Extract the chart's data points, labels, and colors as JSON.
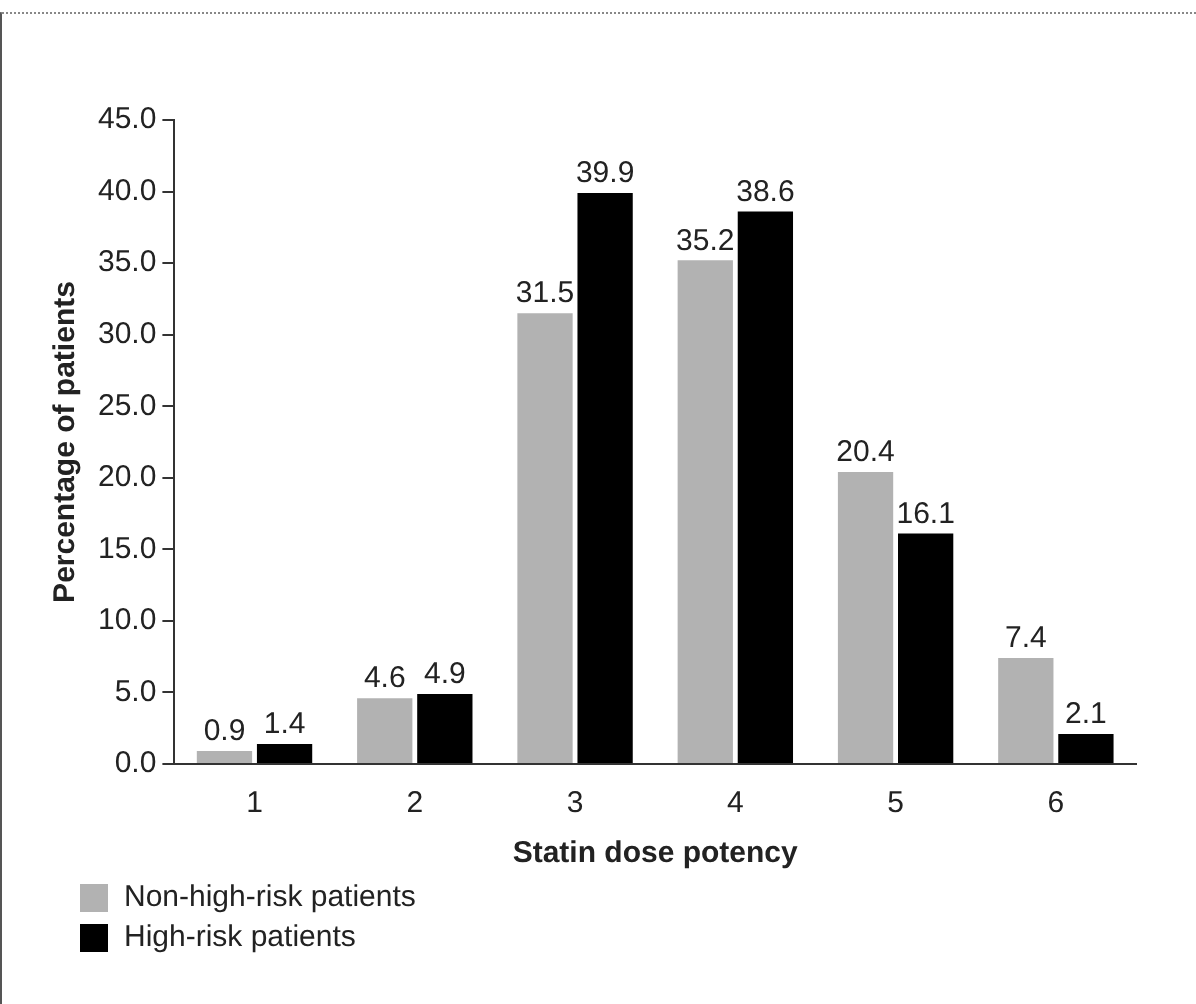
{
  "chart_data": {
    "type": "bar",
    "xlabel": "Statin dose potency",
    "ylabel": "Percentage of patients",
    "categories": [
      "1",
      "2",
      "3",
      "4",
      "5",
      "6"
    ],
    "series": [
      {
        "name": "Non-high-risk patients",
        "color": "#b2b2b2",
        "values": [
          0.9,
          4.6,
          31.5,
          35.2,
          20.4,
          7.4
        ]
      },
      {
        "name": "High-risk patients",
        "color": "#000000",
        "values": [
          1.4,
          4.9,
          39.9,
          38.6,
          16.1,
          2.1
        ]
      }
    ],
    "ylim": [
      0,
      45
    ],
    "yticks": [
      {
        "value": 0,
        "label": "0.0"
      },
      {
        "value": 5,
        "label": "5.0"
      },
      {
        "value": 10,
        "label": "10.0"
      },
      {
        "value": 15,
        "label": "15.0"
      },
      {
        "value": 20,
        "label": "20.0"
      },
      {
        "value": 25,
        "label": "25.0"
      },
      {
        "value": 30,
        "label": "30.0"
      },
      {
        "value": 35,
        "label": "35.0"
      },
      {
        "value": 40,
        "label": "40.0"
      },
      {
        "value": 45,
        "label": "45.0"
      }
    ],
    "data_labels": true,
    "grid": false,
    "legend": "bottom left"
  }
}
